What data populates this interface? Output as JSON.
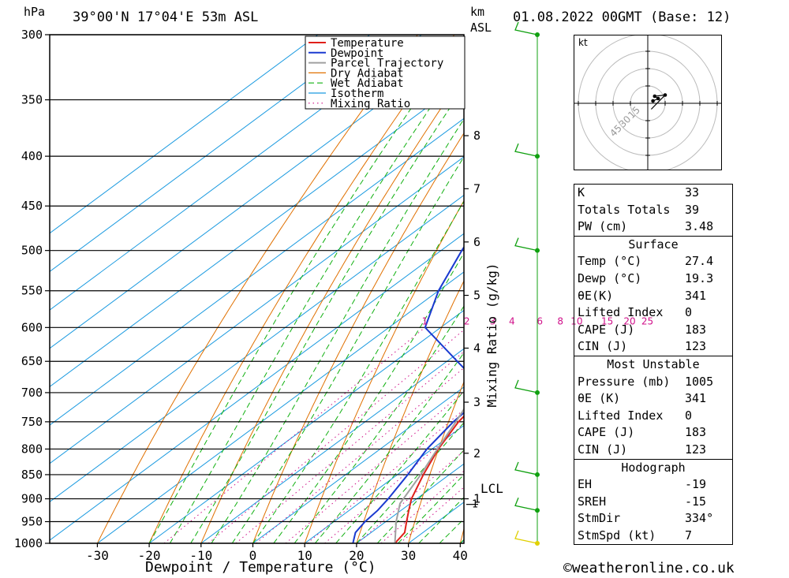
{
  "header": {
    "location": "39°00'N  17°04'E  53m  ASL",
    "datetime": "01.08.2022  00GMT  (Base: 12)",
    "pressure_unit": "hPa",
    "height_unit_1": "km",
    "height_unit_2": "ASL"
  },
  "axes": {
    "xlabel": "Dewpoint / Temperature (°C)",
    "mixing_label": "Mixing Ratio (g/kg)",
    "lcl_label": "LCL",
    "lcl_km_label": "1"
  },
  "colors": {
    "temperature": "#e0201a",
    "dewpoint": "#1a3ad0",
    "parcel": "#a0a0a0",
    "dry_adiabat": "#e07000",
    "wet_adiabat": "#10b010",
    "isotherm": "#1a9ae0",
    "mixing_ratio": "#d0108a",
    "wind_barb": "#10a010"
  },
  "chart_data": {
    "type": "line",
    "title": "",
    "xlabel": "Dewpoint / Temperature (°C)",
    "ylabel": "hPa",
    "pressure_levels": [
      300,
      350,
      400,
      450,
      500,
      550,
      600,
      650,
      700,
      750,
      800,
      850,
      900,
      950,
      1000
    ],
    "x_ticks": [
      -30,
      -20,
      -10,
      0,
      10,
      20,
      30,
      40
    ],
    "height_ticks_km": [
      {
        "label": "8",
        "p": 381
      },
      {
        "label": "7",
        "p": 432
      },
      {
        "label": "6",
        "p": 490
      },
      {
        "label": "5",
        "p": 556
      },
      {
        "label": "4",
        "p": 630
      },
      {
        "label": "3",
        "p": 716
      },
      {
        "label": "2",
        "p": 808
      },
      {
        "label": "1",
        "p": 900
      }
    ],
    "mixing_ratio_labels": [
      {
        "label": "1",
        "w": 1
      },
      {
        "label": "2",
        "w": 2
      },
      {
        "label": "3",
        "w": 3
      },
      {
        "label": "4",
        "w": 4
      },
      {
        "label": "6",
        "w": 6
      },
      {
        "label": "8",
        "w": 8
      },
      {
        "label": "10",
        "w": 10
      },
      {
        "label": "15",
        "w": 15
      },
      {
        "label": "20",
        "w": 20
      },
      {
        "label": "25",
        "w": 25
      }
    ],
    "legend": [
      "Temperature",
      "Dewpoint",
      "Parcel Trajectory",
      "Dry Adiabat",
      "Wet Adiabat",
      "Isotherm",
      "Mixing Ratio"
    ],
    "series": [
      {
        "name": "Temperature",
        "points": [
          [
            1000,
            27.4
          ],
          [
            975,
            26.5
          ],
          [
            950,
            24.0
          ],
          [
            925,
            21.5
          ],
          [
            900,
            19.0
          ],
          [
            850,
            15.0
          ],
          [
            800,
            11.2
          ],
          [
            750,
            8.0
          ],
          [
            700,
            6.0
          ],
          [
            650,
            5.0
          ],
          [
            600,
            1.5
          ],
          [
            550,
            -4.5
          ],
          [
            500,
            -10.5
          ],
          [
            450,
            -17.0
          ],
          [
            400,
            -25.0
          ],
          [
            350,
            -35.0
          ],
          [
            300,
            -45.5
          ]
        ]
      },
      {
        "name": "Dewpoint",
        "points": [
          [
            1000,
            19.3
          ],
          [
            975,
            17.0
          ],
          [
            950,
            16.0
          ],
          [
            925,
            15.5
          ],
          [
            900,
            14.5
          ],
          [
            850,
            12.0
          ],
          [
            800,
            9.0
          ],
          [
            750,
            7.0
          ],
          [
            700,
            6.0
          ],
          [
            650,
            -8.0
          ],
          [
            600,
            -23.0
          ],
          [
            550,
            -30.0
          ],
          [
            500,
            -36.0
          ],
          [
            450,
            -42.0
          ],
          [
            400,
            -52.0
          ],
          [
            350,
            -57.0
          ],
          [
            300,
            -63.0
          ]
        ]
      },
      {
        "name": "Parcel Trajectory",
        "points": [
          [
            1000,
            27.4
          ],
          [
            950,
            22.0
          ],
          [
            910,
            18.0
          ],
          [
            850,
            14.5
          ],
          [
            800,
            11.0
          ],
          [
            750,
            7.5
          ],
          [
            700,
            3.5
          ],
          [
            650,
            -0.5
          ],
          [
            600,
            -5.0
          ],
          [
            550,
            -10.0
          ],
          [
            500,
            -15.5
          ],
          [
            450,
            -22.0
          ],
          [
            400,
            -29.5
          ],
          [
            350,
            -38.0
          ],
          [
            300,
            -48.0
          ]
        ]
      }
    ],
    "lcl_pressure": 912,
    "hodograph": {
      "unit": "kt",
      "ring_labels": [
        "15",
        "30",
        "45"
      ],
      "points": [
        [
          3,
          2
        ],
        [
          6,
          4
        ],
        [
          4,
          6
        ],
        [
          10,
          7
        ],
        [
          2,
          -5
        ]
      ]
    },
    "wind_barbs": [
      {
        "p": 300
      },
      {
        "p": 400
      },
      {
        "p": 500
      },
      {
        "p": 700
      },
      {
        "p": 850
      },
      {
        "p": 925
      },
      {
        "p": 1000
      }
    ]
  },
  "params": {
    "top": [
      {
        "label": "K",
        "value": "33"
      },
      {
        "label": "Totals Totals",
        "value": "39"
      },
      {
        "label": "PW (cm)",
        "value": "3.48"
      }
    ],
    "surface_title": "Surface",
    "surface": [
      {
        "label": "Temp (°C)",
        "value": "27.4"
      },
      {
        "label": "Dewp (°C)",
        "value": "19.3"
      },
      {
        "label": "θE(K)",
        "value": "341"
      },
      {
        "label": "Lifted Index",
        "value": "0"
      },
      {
        "label": "CAPE (J)",
        "value": "183"
      },
      {
        "label": "CIN (J)",
        "value": "123"
      }
    ],
    "unstable_title": "Most Unstable",
    "unstable": [
      {
        "label": "Pressure (mb)",
        "value": "1005"
      },
      {
        "label": "θE (K)",
        "value": "341"
      },
      {
        "label": "Lifted Index",
        "value": "0"
      },
      {
        "label": "CAPE (J)",
        "value": "183"
      },
      {
        "label": "CIN (J)",
        "value": "123"
      }
    ],
    "hodo_title": "Hodograph",
    "hodo": [
      {
        "label": "EH",
        "value": "-19"
      },
      {
        "label": "SREH",
        "value": "-15"
      },
      {
        "label": "StmDir",
        "value": "334°"
      },
      {
        "label": "StmSpd (kt)",
        "value": "7"
      }
    ]
  },
  "footer": "©weatheronline.co.uk"
}
